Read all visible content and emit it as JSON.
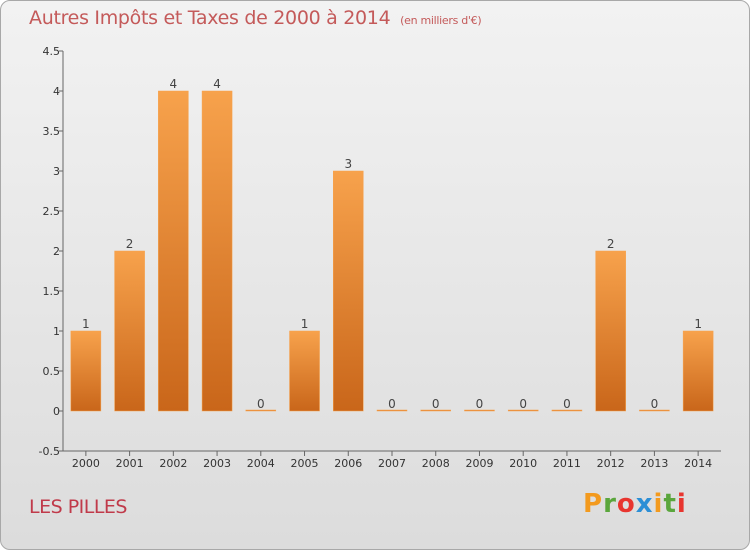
{
  "title": "Autres Impôts et Taxes de 2000 à 2014",
  "subtitle": "(en milliers d'€)",
  "place": "LES PILLES",
  "logo": {
    "letters": [
      "P",
      "r",
      "o",
      "x",
      "i",
      "t",
      "i"
    ],
    "colors": [
      "#f39a1e",
      "#5aa63c",
      "#e8352f",
      "#2c8fd6",
      "#f39a1e",
      "#5aa63c",
      "#e8352f"
    ]
  },
  "colors": {
    "bar_top": "#f7a24c",
    "bar_bottom": "#c9661a",
    "title": "#c45a5a",
    "place": "#c03a4a"
  },
  "chart_data": {
    "type": "bar",
    "categories": [
      "2000",
      "2001",
      "2002",
      "2003",
      "2004",
      "2005",
      "2006",
      "2007",
      "2008",
      "2009",
      "2010",
      "2011",
      "2012",
      "2013",
      "2014"
    ],
    "values": [
      1,
      2,
      4,
      4,
      0,
      1,
      3,
      0,
      0,
      0,
      0,
      0,
      2,
      0,
      1
    ],
    "data_labels": [
      "1",
      "2",
      "4",
      "4",
      "0",
      "1",
      "3",
      "0",
      "0",
      "0",
      "0",
      "0",
      "2",
      "0",
      "1"
    ],
    "ylim": [
      -0.5,
      4.5
    ],
    "yticks": [
      "-0.5",
      "0",
      "0.5",
      "1",
      "1.5",
      "2",
      "2.5",
      "3",
      "3.5",
      "4",
      "4.5"
    ],
    "ytick_values": [
      -0.5,
      0,
      0.5,
      1,
      1.5,
      2,
      2.5,
      3,
      3.5,
      4,
      4.5
    ],
    "grid": false
  }
}
